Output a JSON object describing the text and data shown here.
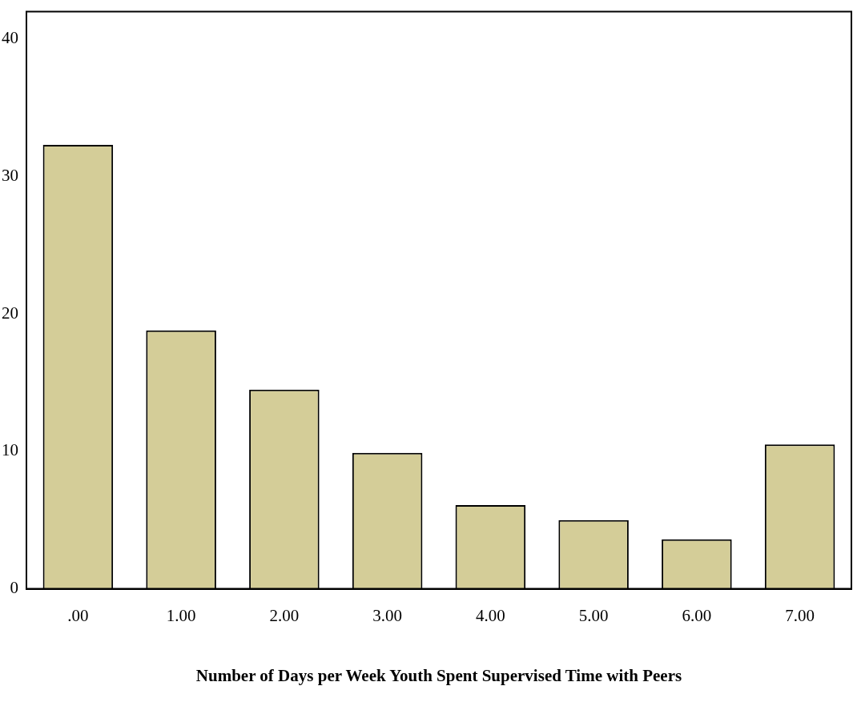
{
  "chart_data": {
    "type": "bar",
    "xlabel": "Number of Days per Week Youth Spent Supervised Time with Peers",
    "categories": [
      ".00",
      "1.00",
      "2.00",
      "3.00",
      "4.00",
      "5.00",
      "6.00",
      "7.00"
    ],
    "values": [
      32.3,
      18.8,
      14.5,
      9.9,
      6.1,
      5.0,
      3.6,
      10.5
    ],
    "color": "#d4cd98",
    "ylim": [
      0,
      42
    ],
    "yticks": [
      0,
      10,
      20,
      30,
      40
    ],
    "grid": false,
    "legend": false
  }
}
